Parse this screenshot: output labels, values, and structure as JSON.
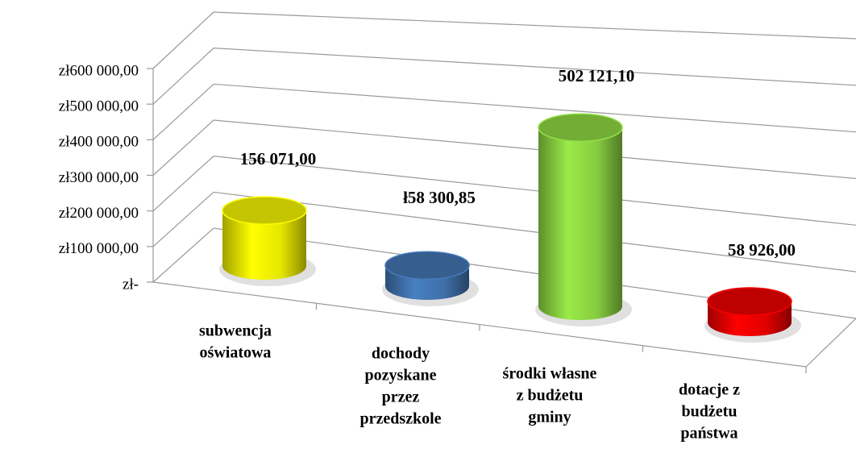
{
  "chart_data": {
    "type": "cylinder",
    "categories": [
      [
        "subwencja",
        "oświatowa"
      ],
      [
        "dochody",
        "pozyskane",
        "przez",
        "przedszkole"
      ],
      [
        "środki własne",
        "z budżetu",
        "gminy"
      ],
      [
        "dotacje z",
        "budżetu",
        "państwa"
      ]
    ],
    "values": [
      156071.0,
      58300.85,
      502121.1,
      58926.0
    ],
    "value_labels": [
      "156 071,00",
      "ł58 300,85",
      "502 121,10",
      "58 926,00"
    ],
    "colors": [
      "#e6e600",
      "#3f6fa8",
      "#86cc3f",
      "#e00000"
    ],
    "ylim": [
      0,
      600000
    ],
    "yticks": [
      {
        "value": 0,
        "label": "zł-"
      },
      {
        "value": 100000,
        "label": "zł100 000,00"
      },
      {
        "value": 200000,
        "label": "zł200 000,00"
      },
      {
        "value": 300000,
        "label": "zł300 000,00"
      },
      {
        "value": 400000,
        "label": "zł400 000,00"
      },
      {
        "value": 500000,
        "label": "zł500 000,00"
      },
      {
        "value": 600000,
        "label": "zł600 000,00"
      }
    ],
    "grid": true
  }
}
